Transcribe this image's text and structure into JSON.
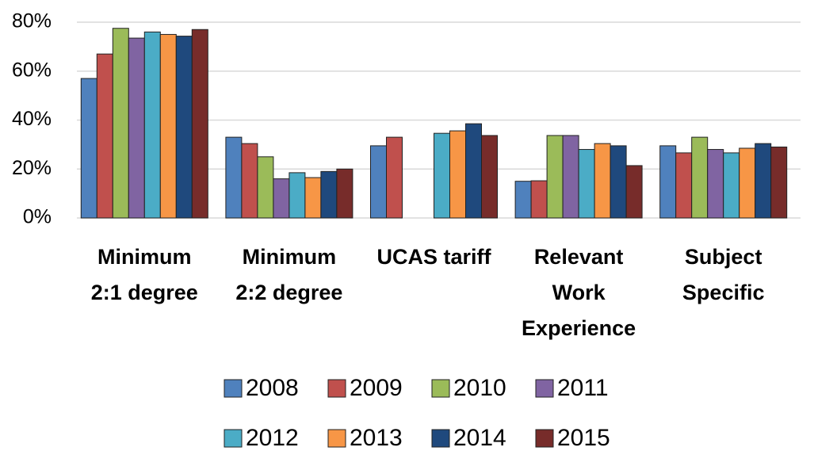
{
  "chart_data": {
    "type": "bar",
    "categories": [
      "Minimum\n2:1 degree",
      "Minimum\n2:2 degree",
      "UCAS tariff",
      "Relevant\nWork\nExperience",
      "Subject\nSpecific"
    ],
    "series": [
      {
        "name": "2008",
        "color": "#4f81bd",
        "values": [
          57,
          33,
          29.5,
          15,
          29.5
        ]
      },
      {
        "name": "2009",
        "color": "#c0504d",
        "values": [
          67,
          30.4,
          33,
          15.2,
          26.6
        ]
      },
      {
        "name": "2010",
        "color": "#9bbb59",
        "values": [
          77.5,
          25,
          null,
          33.7,
          33
        ]
      },
      {
        "name": "2011",
        "color": "#8064a2",
        "values": [
          73.5,
          16,
          null,
          33.7,
          28
        ]
      },
      {
        "name": "2012",
        "color": "#4bacc6",
        "values": [
          76,
          18.5,
          34.6,
          28,
          26.6
        ]
      },
      {
        "name": "2013",
        "color": "#f79646",
        "values": [
          75,
          16.5,
          35.6,
          30.4,
          28.5
        ]
      },
      {
        "name": "2014",
        "color": "#1f497d",
        "values": [
          74.3,
          19,
          38.5,
          29.5,
          30.4
        ]
      },
      {
        "name": "2015",
        "color": "#772c2a",
        "values": [
          77,
          20,
          33.7,
          21.4,
          29
        ]
      }
    ],
    "ylim": [
      0,
      80
    ],
    "yticks": [
      {
        "value": 0,
        "label": "0%"
      },
      {
        "value": 20,
        "label": "20%"
      },
      {
        "value": 40,
        "label": "40%"
      },
      {
        "value": 60,
        "label": "60%"
      },
      {
        "value": 80,
        "label": "80%"
      }
    ],
    "grid": true,
    "legend": "bottom"
  }
}
